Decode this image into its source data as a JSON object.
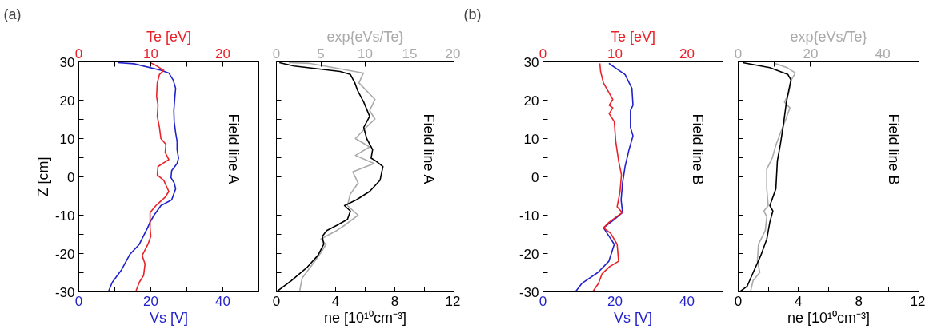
{
  "chart_data": [
    {
      "type": "line",
      "title": "(a)",
      "xlabel": "Vs [V]",
      "x2label": "Te [eV]",
      "ylabel": "Z [cm]",
      "annotations": [
        "Field line A"
      ],
      "xlim": [
        0,
        50
      ],
      "xticks": [
        0,
        {
          "value": 10,
          "label": null
        },
        20,
        {
          "value": 30,
          "label": null
        },
        40,
        {
          "value": 50,
          "label": null
        }
      ],
      "x2lim": [
        0,
        25
      ],
      "x2ticks": [
        0,
        {
          "value": 5,
          "label": null
        },
        10,
        {
          "value": 15,
          "label": null
        },
        20,
        {
          "value": 25,
          "label": null
        }
      ],
      "ylim": [
        -30,
        30
      ],
      "yticks": [
        -30,
        {
          "value": -25,
          "label": null
        },
        -20,
        {
          "value": -15,
          "label": null
        },
        -10,
        {
          "value": -5,
          "label": null
        },
        0,
        {
          "value": 5,
          "label": null
        },
        10,
        {
          "value": 15,
          "label": null
        },
        20,
        {
          "value": 25,
          "label": null
        },
        30
      ],
      "grid": false,
      "series": [
        {
          "color": "#2222cc",
          "x": [
            8.2,
            9.3,
            11.9,
            14.2,
            16.8,
            19.1,
            19.8,
            20.9,
            22.8,
            25.8,
            26.9,
            26.5,
            25.6,
            25.8,
            27.3,
            27.7,
            27.3,
            27.3,
            26.9,
            26.5,
            26.4,
            26.7,
            26.9,
            26.2,
            25,
            22.8,
            15.3,
            10.8
          ],
          "values": [
            -30,
            -27.5,
            -24.2,
            -20.2,
            -17.6,
            -13.3,
            -11.8,
            -10,
            -7.5,
            -6,
            -3.1,
            -1.6,
            -0.2,
            1.6,
            3.5,
            4.9,
            7.1,
            9.3,
            11.5,
            14.4,
            17.3,
            21,
            23.1,
            25.3,
            27.1,
            27.8,
            29.5,
            29.8
          ]
        },
        {
          "color": "#e82228",
          "axis": "x2",
          "x": [
            7.9,
            8.4,
            9,
            9.2,
            8.8,
            9.6,
            10,
            9.9,
            9.9,
            9.9,
            10.7,
            12,
            12.5,
            11.8,
            10.9,
            11,
            12.5,
            12,
            12.1,
            11.4,
            11.2,
            10.9,
            11,
            10.8,
            10.9,
            11.2,
            11.8,
            10.5,
            9.9
          ],
          "values": [
            -30,
            -27.5,
            -25.7,
            -22.7,
            -20.5,
            -17.6,
            -15.5,
            -13.3,
            -11.1,
            -9.3,
            -7.5,
            -5.3,
            -3.8,
            -0.9,
            0.5,
            2.7,
            4.5,
            6.4,
            8.5,
            10,
            12.9,
            15.8,
            18.7,
            21,
            24.5,
            26.7,
            27.8,
            29.3,
            29.8
          ]
        }
      ]
    },
    {
      "type": "line",
      "xlabel": "ne [10¹⁰cm⁻³]",
      "x2label": "exp{eVs/Te}",
      "annotations": [
        "Field line A"
      ],
      "tick_labels": "x",
      "xlim": [
        0,
        12
      ],
      "xticks": [
        0,
        {
          "value": 2,
          "label": null
        },
        4,
        {
          "value": 6,
          "label": null
        },
        8,
        {
          "value": 10,
          "label": null
        },
        12
      ],
      "x2lim": [
        0,
        20
      ],
      "x2ticks": [
        0,
        5,
        10,
        15,
        20
      ],
      "ylim": [
        -30,
        30
      ],
      "yticks": [
        -30,
        {
          "value": -25,
          "label": null
        },
        -20,
        {
          "value": -15,
          "label": null
        },
        -10,
        {
          "value": -5,
          "label": null
        },
        0,
        {
          "value": 5,
          "label": null
        },
        10,
        {
          "value": 15,
          "label": null
        },
        20,
        {
          "value": 25,
          "label": null
        },
        30
      ],
      "grid": false,
      "series": [
        {
          "color": "#aaaaaa",
          "axis": "x2",
          "x": [
            2.6,
            2.9,
            4.1,
            5,
            5.6,
            5,
            6.8,
            7.7,
            9.2,
            8,
            8.3,
            9.2,
            8.6,
            11,
            8.9,
            10.5,
            8.9,
            9.8,
            11.1,
            10.5,
            11.1,
            9.3,
            9.8,
            3.8,
            1.4
          ],
          "values": [
            -30,
            -26.4,
            -22.7,
            -19.8,
            -17.6,
            -16.2,
            -14,
            -12.6,
            -10,
            -7.5,
            -4.6,
            -1.6,
            1.3,
            3.5,
            5.6,
            7.8,
            10,
            12.2,
            15.1,
            17.3,
            20.2,
            24.5,
            27.1,
            29.6,
            29.8
          ]
        },
        {
          "color": "#000000",
          "x": [
            0,
            1,
            2.1,
            2.8,
            3.2,
            3.1,
            3.4,
            4.1,
            4.8,
            5,
            4.6,
            5.4,
            6.3,
            7,
            7.2,
            6.7,
            6.4,
            6.5,
            6.1,
            5.9,
            6.3,
            5.9,
            5.5,
            5.3,
            5,
            4.3,
            1.2,
            0.2
          ],
          "values": [
            -30,
            -27.1,
            -23.5,
            -20.5,
            -17.6,
            -15.5,
            -14,
            -12.6,
            -11.1,
            -8.9,
            -7.5,
            -6,
            -3.8,
            -0.9,
            2.7,
            4.2,
            4.9,
            7.1,
            10,
            12.9,
            15.8,
            19.5,
            22.4,
            24.5,
            26.7,
            27.5,
            28.9,
            29.8
          ]
        }
      ]
    },
    {
      "type": "line",
      "title": "(b)",
      "xlabel": "Vs [V]",
      "x2label": "Te [eV]",
      "annotations": [
        "Field line B"
      ],
      "xlim": [
        0,
        50
      ],
      "xticks": [
        0,
        {
          "value": 10,
          "label": null
        },
        20,
        {
          "value": 30,
          "label": null
        },
        40,
        {
          "value": 50,
          "label": null
        }
      ],
      "x2lim": [
        0,
        25
      ],
      "x2ticks": [
        0,
        {
          "value": 5,
          "label": null
        },
        10,
        {
          "value": 15,
          "label": null
        },
        20,
        {
          "value": 25,
          "label": null
        }
      ],
      "ylim": [
        -30,
        30
      ],
      "yticks": [
        -30,
        {
          "value": -25,
          "label": null
        },
        -20,
        {
          "value": -15,
          "label": null
        },
        -10,
        {
          "value": -5,
          "label": null
        },
        0,
        {
          "value": 5,
          "label": null
        },
        10,
        {
          "value": 15,
          "label": null
        },
        20,
        {
          "value": 25,
          "label": null
        },
        30
      ],
      "grid": false,
      "series": [
        {
          "color": "#2222cc",
          "x": [
            9,
            10.8,
            15.3,
            18.3,
            19.8,
            17.6,
            16.8,
            19.8,
            22.1,
            21.7,
            22.1,
            22.8,
            23.9,
            25,
            24.3,
            24.3,
            25,
            24.7,
            22.8,
            18.3
          ],
          "values": [
            -30,
            -27.8,
            -24.9,
            -22,
            -17.6,
            -14.4,
            -13.3,
            -11.1,
            -9.3,
            -6,
            -1.6,
            2.7,
            7.1,
            10.7,
            12.9,
            17.3,
            18.7,
            23.1,
            26.7,
            29.6
          ]
        },
        {
          "color": "#e82228",
          "axis": "x2",
          "x": [
            6.9,
            7.7,
            8.2,
            9.2,
            10.5,
            10.3,
            9.4,
            8.4,
            9.2,
            11,
            10.3,
            10.7,
            10.9,
            10.5,
            10.1,
            9.9,
            9.2,
            9.7,
            9.2,
            9.7,
            8.4,
            8,
            7.9
          ],
          "values": [
            -30,
            -27.8,
            -25.3,
            -23.5,
            -22,
            -17.6,
            -14.7,
            -13.3,
            -11.8,
            -9.3,
            -7.8,
            -3.8,
            0.5,
            4.2,
            9.3,
            14.4,
            16.5,
            18,
            18.7,
            20.2,
            24.5,
            27.5,
            29.6
          ]
        }
      ]
    },
    {
      "type": "line",
      "xlabel": "ne [10¹⁰cm⁻³]",
      "x2label": "exp{eVs/Te}",
      "annotations": [
        "Field line B"
      ],
      "tick_labels": "x",
      "xlim": [
        0,
        12
      ],
      "xticks": [
        0,
        {
          "value": 2,
          "label": null
        },
        4,
        {
          "value": 6,
          "label": null
        },
        8,
        {
          "value": 10,
          "label": null
        },
        12
      ],
      "x2lim": [
        0,
        50
      ],
      "x2ticks": [
        0,
        {
          "value": 10,
          "label": null
        },
        20,
        {
          "value": 30,
          "label": null
        },
        40,
        {
          "value": 50,
          "label": null
        }
      ],
      "ylim": [
        -30,
        30
      ],
      "yticks": [
        -30,
        {
          "value": -25,
          "label": null
        },
        -20,
        {
          "value": -15,
          "label": null
        },
        -10,
        {
          "value": -5,
          "label": null
        },
        0,
        {
          "value": 5,
          "label": null
        },
        10,
        {
          "value": 15,
          "label": null
        },
        20,
        {
          "value": 25,
          "label": null
        },
        30
      ],
      "grid": false,
      "series": [
        {
          "color": "#aaaaaa",
          "axis": "x2",
          "x": [
            3.4,
            4.1,
            6,
            5.3,
            5.6,
            7.5,
            7.9,
            7.1,
            8.3,
            7.9,
            7.9,
            9.4,
            10.5,
            11.7,
            13.2,
            14.3,
            12.8,
            13.9,
            14.7,
            15.8,
            13.5,
            10.2
          ],
          "values": [
            -30,
            -27.1,
            -24.9,
            -22,
            -17.6,
            -14,
            -10.4,
            -8.9,
            -7.5,
            -3.1,
            2,
            4.9,
            8.5,
            11.5,
            15.1,
            18,
            19.5,
            21.7,
            25.3,
            27.1,
            28.5,
            29.6
          ]
        },
        {
          "color": "#000000",
          "x": [
            0.1,
            0.6,
            1,
            1.5,
            1.9,
            2.1,
            2.3,
            2.1,
            2.5,
            2.6,
            2.8,
            3,
            3.2,
            3.5,
            3.3,
            2.1,
            0.3
          ],
          "values": [
            -30,
            -28.5,
            -24.9,
            -20.5,
            -16.2,
            -11.8,
            -8.9,
            -7.5,
            -3.1,
            4.2,
            8.5,
            13.6,
            19.5,
            25.3,
            26.7,
            28.5,
            29.8
          ]
        }
      ]
    }
  ]
}
